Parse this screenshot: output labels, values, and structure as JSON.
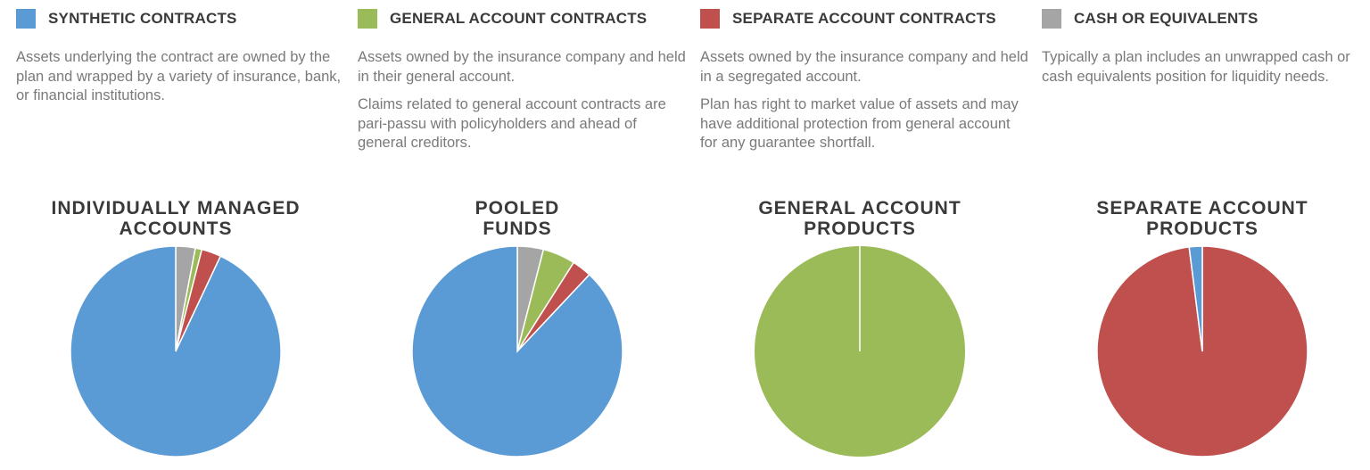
{
  "legend": [
    {
      "label": "SYNTHETIC CONTRACTS",
      "color": "#5b9bd5",
      "desc": [
        "Assets underlying the contract are owned by the plan and wrapped by a variety of insurance, bank, or financial institutions."
      ]
    },
    {
      "label": "GENERAL ACCOUNT CONTRACTS",
      "color": "#9bbb59",
      "desc": [
        "Assets owned by the insurance company and held in their general account.",
        "Claims related to general account contracts are pari-passu with policyholders and ahead of general creditors."
      ]
    },
    {
      "label": "SEPARATE ACCOUNT CONTRACTS",
      "color": "#c0504d",
      "desc": [
        "Assets owned by the insurance company and held in a segregated account.",
        "Plan has right to market value of assets and may have additional protection from general account for any guarantee shortfall."
      ]
    },
    {
      "label": "CASH OR EQUIVALENTS",
      "color": "#a5a5a5",
      "desc": [
        "Typically a plan includes an unwrapped cash or cash equivalents position for liquidity needs."
      ]
    }
  ],
  "chart_data": [
    {
      "type": "pie",
      "title": "INDIVIDUALLY MANAGED ACCOUNTS",
      "title_lines": [
        "INDIVIDUALLY MANAGED",
        "ACCOUNTS"
      ],
      "categories": [
        "CASH OR EQUIVALENTS",
        "GENERAL ACCOUNT CONTRACTS",
        "SEPARATE ACCOUNT CONTRACTS",
        "SYNTHETIC CONTRACTS"
      ],
      "values": [
        3,
        1,
        3,
        93
      ]
    },
    {
      "type": "pie",
      "title": "POOLED FUNDS",
      "title_lines": [
        "POOLED",
        "FUNDS"
      ],
      "categories": [
        "CASH OR EQUIVALENTS",
        "GENERAL ACCOUNT CONTRACTS",
        "SEPARATE ACCOUNT CONTRACTS",
        "SYNTHETIC CONTRACTS"
      ],
      "values": [
        4,
        5,
        3,
        88
      ]
    },
    {
      "type": "pie",
      "title": "GENERAL ACCOUNT PRODUCTS",
      "title_lines": [
        "GENERAL ACCOUNT",
        "PRODUCTS"
      ],
      "categories": [
        "CASH OR EQUIVALENTS",
        "GENERAL ACCOUNT CONTRACTS",
        "SEPARATE ACCOUNT CONTRACTS",
        "SYNTHETIC CONTRACTS"
      ],
      "values": [
        0,
        100,
        0,
        0
      ]
    },
    {
      "type": "pie",
      "title": "SEPARATE ACCOUNT PRODUCTS",
      "title_lines": [
        "SEPARATE ACCOUNT",
        "PRODUCTS"
      ],
      "categories": [
        "CASH OR EQUIVALENTS",
        "GENERAL ACCOUNT CONTRACTS",
        "SEPARATE ACCOUNT CONTRACTS",
        "SYNTHETIC CONTRACTS"
      ],
      "values": [
        0,
        0,
        98,
        2
      ]
    }
  ],
  "colors": {
    "CASH OR EQUIVALENTS": "#a5a5a5",
    "GENERAL ACCOUNT CONTRACTS": "#9bbb59",
    "SEPARATE ACCOUNT CONTRACTS": "#c0504d",
    "SYNTHETIC CONTRACTS": "#5b9bd5"
  }
}
